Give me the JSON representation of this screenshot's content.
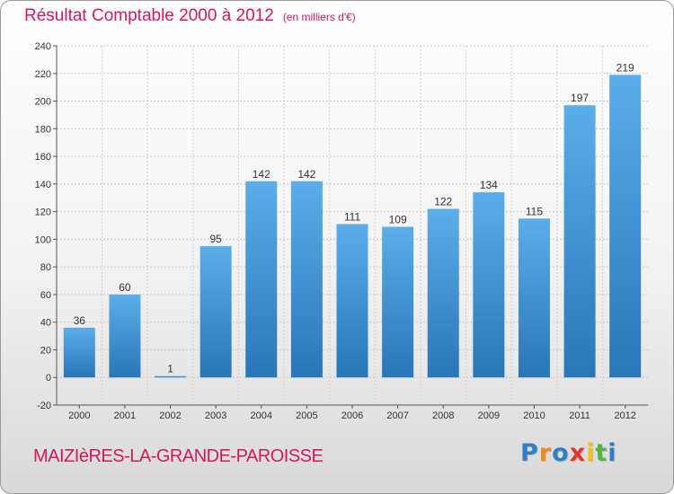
{
  "header": {
    "title": "Résultat Comptable 2000 à 2012",
    "subtitle": "(en milliers d'€)"
  },
  "footer": {
    "commune": "MAIZIèRES-LA-GRANDE-PAROISSE",
    "logo_letters": [
      "P",
      "r",
      "o",
      "x",
      "i",
      "t",
      "i"
    ],
    "logo_colors": [
      "#2f7fc4",
      "#f08a1c",
      "#2f7fc4",
      "#e3342f",
      "#f3c21b",
      "#55b244",
      "#2f7fc4"
    ]
  },
  "chart_data": {
    "type": "bar",
    "title": "Résultat Comptable 2000 à 2012",
    "subtitle": "(en milliers d'€)",
    "categories": [
      "2000",
      "2001",
      "2002",
      "2003",
      "2004",
      "2005",
      "2006",
      "2007",
      "2008",
      "2009",
      "2010",
      "2011",
      "2012"
    ],
    "values": [
      36,
      60,
      1,
      95,
      142,
      142,
      111,
      109,
      122,
      134,
      115,
      197,
      219
    ],
    "ylim": [
      -20,
      240
    ],
    "yticks": [
      -20,
      0,
      20,
      40,
      60,
      80,
      100,
      120,
      140,
      160,
      180,
      200,
      220,
      240
    ],
    "grid": true,
    "bar_color": "#4f9fe0"
  }
}
